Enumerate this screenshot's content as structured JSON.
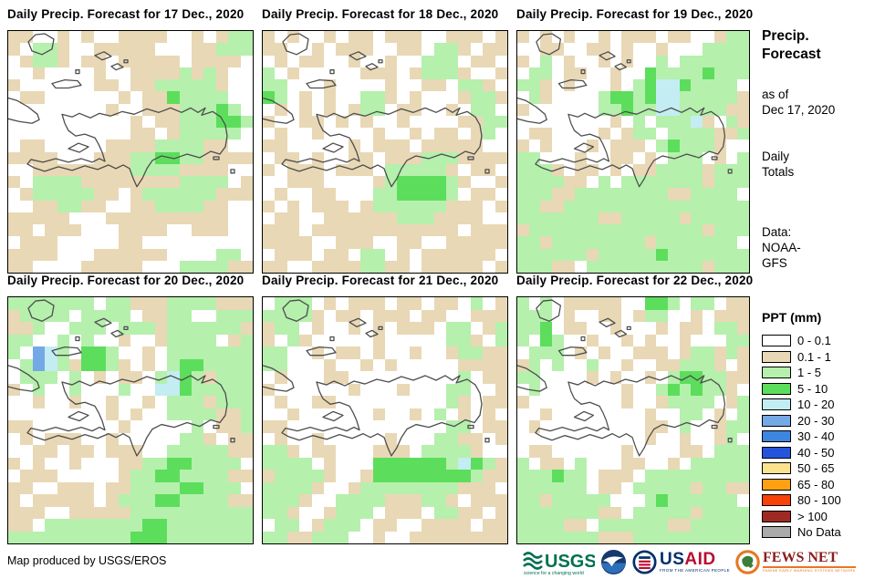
{
  "page": {
    "background": "#FFFFFF",
    "outline_color": "#4D4D4D"
  },
  "palette": {
    ".": "#FFFFFF",
    "t": "#E9D8B5",
    "g": "#B5F0AD",
    "G": "#5CDE5C",
    "c": "#C3EDF3",
    "b": "#74A9E6"
  },
  "panels": [
    {
      "id": "dec17",
      "title": "Daily Precip. Forecast for 17 Dec., 2020",
      "grid": [
        "tt..t.t..tttt..t.tgg",
        "t.ggt..ttttt...ttggg",
        ".tggt.tt.ttttt.tttt.",
        "..t....t..ttttgtgt..",
        "t......tt.ttgggggt..",
        ".tt......t.ttGgggg..",
        "........t..tttgggGg.",
        "..........t.ttgggGGg",
        "..........tt.tggggg.",
        ".tt.....ttttggggtt..",
        "tttt...tttggGGggtttt",
        "..ttttttttggggtttt..",
        "t.ggggttttttttgggg.t",
        ".tgggggtt.tggggggttt",
        "..ttggtt..ttggggtt..",
        "ttttt...tttttttttt..",
        "tt.ttt...tttt..ttt..",
        ".ttt.....tt.........",
        "tttt...tttttt....gg.",
        "tt....ttttt...ggggtt"
      ]
    },
    {
      "id": "dec18",
      "title": "Daily Precip. Forecast for 18 Dec., 2020",
      "grid": [
        "t.t..t.tt.ttt..ttt.t",
        "tt..t.ttt..tt.ggt.tt",
        ".t.tt..t..t..ggg.tt.",
        "g.t.....ttt.tgggt..t",
        "gg...t....t..tt.ggt.",
        "Gg.t.t..ggt.t...tggt",
        ".t.t.t.tgg.tt..t.gg.",
        "t..tt.t.t..t....ttgg",
        ".t..t....t..t.tt.tg.",
        "tt.....t.ttt.ttttt..",
        ".tt.t..tt.tttgggtttt",
        "t.ttt.ttt.gggggt.tt.",
        "..ttt....tgGGGGgt..t",
        ".t..tt...ggGGGGg.tt.",
        "t.t.ttt.tggggggttt.t",
        ".tt..ttttttgggtttt..",
        "ttt.tttttttttttt.ttt",
        "tttt..ttt..tt..ttttt",
        ".ttt.tt.gg.t.tttttt.",
        "tt..ttttggtt.ttttt.t"
      ]
    },
    {
      "id": "dec19",
      "title": "Daily Precip. Forecast for 19 Dec., 2020",
      "grid": [
        "t.t.t..t.ttt.tt..tgg",
        "..tt..tt.t..t...gggg",
        "t.g.t..t.t..g.gggggg",
        ".gg.tt..t..GggggGggg",
        "ggt.t...t.gGccGgggg.",
        ".gt....gGGgGccgggggt",
        "t......ggGggccggggtt",
        "........t.g.gggct.gt",
        ".tt....t.tgg.ggggttg",
        "t.t...t.ttt.gGgggt..",
        "gg...t..tt.t.ggg.t.g",
        "gggt.tt.t.ttggggtggg",
        "ggggtt.g.gggggggtggg",
        "gggttggggggggttgggg.",
        "ggttgggggggggggggggg",
        "gggggggttgggggtggggg",
        "tgggggggggggggggtggg",
        "ggtggggggggtggggggg.",
        "ggggggtgggggGggggggg",
        "gggtt.ggggggggggtggg"
      ]
    },
    {
      "id": "dec20",
      "title": "Daily Precip. Forecast for 20 Dec., 2020",
      "grid": [
        "ggggggg.ggtttggggttt",
        "tgggg.gggg.ttgg..ggg",
        "ttg..ggg.gggtggggggt",
        "gg..g.g..t..tgggg.tg",
        "g.bcg.GGg..t.ggggggg",
        ".gbcgtGGgt.t.gGGgggg",
        ".ggg.g.t.tt.gcGgtggg",
        "t.g..g...g..ccGggggg",
        "..t..t..t..t.gggtggg",
        "........t.t..ggggttg",
        "tt.......t.....g.ttg",
        ".t.ttt..t.....ggt.tt",
        "..tt.tt.ttt..gggggtt",
        "t.t..t...ttggGGgggg.",
        ".ttt.....tggGGggggtt",
        "tt..ttt.ttggggGGggg.",
        "t.ttttt.tgggGGggggtt",
        "ttt..tttttgggggggggg",
        "tt.ggggggggGGggggggg",
        "ggggggggggGGGggggggg"
      ]
    },
    {
      "id": "dec21",
      "title": "Daily Precip. Forecast for 21 Dec., 2020",
      "grid": [
        ".ggg.t.ttt.tt.tt.g.t",
        "ggggt.tt.ttt.tt..ttt",
        "tgg.t..t.t.ttt.gg.tg",
        "t.gt.....t.....ggt.g",
        "gg..t.tt.t..t..tggtt",
        "gg...t..t.t.....tttt",
        ".t...tt.........g.tt",
        "t......t...t...gg..t",
        ".t..tt.........gt.tt",
        "..t......t..t.g.t.t.",
        "tt.............gg.tt",
        ".t..t.....t...ggtt.t",
        "ggt.tt...ttt.ggggt..",
        "gggg.t...GGGGGGgcGgt",
        "tggggt..tGGGGGGGGgtt",
        "ggggt..tggggggggttt.",
        "gggt..ggggtttggt.ttt",
        "ggt..tggg.ttt.ggtt.t",
        ".gg.tggg.tt..tttt.tt",
        "ggttggg..t..tttttttt"
      ]
    },
    {
      "id": "dec22",
      "title": "Daily Precip. Forecast for 22 Dec., 2020",
      "grid": [
        "g.g.ttttt..GGg.gg.tt",
        "ggg.t..tt.tgg..t.ttt",
        "ggG.tt..t...t.tt.ggt",
        "g.Gg..t..t.t..t...gg",
        ".ggg.t.t..ttt.tggtgt",
        "tg.g..g..t..ttgggt.t",
        "gg....t.t..t.gGGggtt",
        ".g.......t..gGgGggt.",
        "t........t..tgggg.tg",
        "..t........t..gg.t.g",
        ".t.........tt.g..tgg",
        "...........t..t..tg.",
        ".tt......t....tt.ggg",
        "g.tt.g...tt..t.ggggg",
        "gggGgg.ttt.ggggggggg",
        "gggggg.tt.gggggtggtt",
        "ggtggggg...gGgggggg.",
        "gggggggtt.gggggtgggg",
        "ggggtt.ggggggttggggg",
        "gggggggtttgggggggggg"
      ]
    }
  ],
  "sidebar": {
    "title_line1": "Precip.",
    "title_line2": "Forecast",
    "asof_line1": "as of",
    "asof_line2": "Dec 17, 2020",
    "totals_line1": "Daily",
    "totals_line2": "Totals",
    "data_line1": "Data:",
    "data_line2": "NOAA-",
    "data_line3": "GFS"
  },
  "legend": {
    "title": "PPT (mm)",
    "items": [
      {
        "label": "0 - 0.1",
        "color": "#FFFFFF"
      },
      {
        "label": "0.1 - 1",
        "color": "#E9D8B5"
      },
      {
        "label": "1 - 5",
        "color": "#B5F0AD"
      },
      {
        "label": "5 - 10",
        "color": "#5CDE5C"
      },
      {
        "label": "10 - 20",
        "color": "#C3EDF3"
      },
      {
        "label": "20 - 30",
        "color": "#74A9E6"
      },
      {
        "label": "30 - 40",
        "color": "#3C86E0"
      },
      {
        "label": "40 - 50",
        "color": "#2653DC"
      },
      {
        "label": "50 - 65",
        "color": "#FAE28E"
      },
      {
        "label": "65 - 80",
        "color": "#FFA013"
      },
      {
        "label": "80 - 100",
        "color": "#F84208"
      },
      {
        "label": "> 100",
        "color": "#9E2B23"
      },
      {
        "label": "No Data",
        "color": "#ABABAB"
      }
    ]
  },
  "footer": {
    "credit": "Map produced by USGS/EROS",
    "logos": {
      "usgs": {
        "text": "USGS",
        "tagline": "science for a changing world",
        "color": "#007150"
      },
      "noaa": {
        "name": "NOAA"
      },
      "usaid": {
        "text_us": "US",
        "text_aid": "AID",
        "tagline": "FROM THE AMERICAN PEOPLE"
      },
      "fews": {
        "text": "FEWS NET",
        "tagline": "FAMINE EARLY WARNING SYSTEMS NETWORK"
      }
    }
  }
}
